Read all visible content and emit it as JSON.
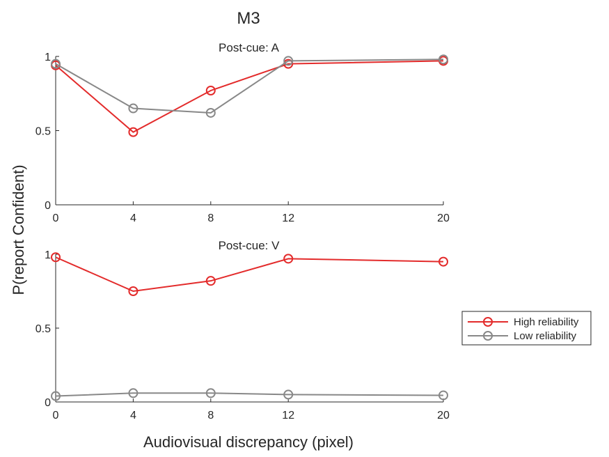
{
  "figure_title": "M3",
  "ylabel": "P(report Confident)",
  "xlabel": "Audiovisual discrepancy (pixel)",
  "legend": [
    {
      "name": "High reliability",
      "color": "#e32b2b"
    },
    {
      "name": "Low reliability",
      "color": "#888888"
    }
  ],
  "chart_data": [
    {
      "type": "line",
      "title": "Post-cue: A",
      "x": [
        0,
        4,
        8,
        12,
        20
      ],
      "xlim": [
        0,
        20
      ],
      "ylim": [
        0,
        1
      ],
      "xticks": [
        "0",
        "4",
        "8",
        "12",
        "20"
      ],
      "yticks": [
        "0",
        "0.5",
        "1"
      ],
      "series": [
        {
          "name": "High reliability",
          "color": "#e32b2b",
          "values": [
            0.94,
            0.49,
            0.77,
            0.95,
            0.97
          ]
        },
        {
          "name": "Low reliability",
          "color": "#888888",
          "values": [
            0.95,
            0.65,
            0.62,
            0.97,
            0.98
          ]
        }
      ]
    },
    {
      "type": "line",
      "title": "Post-cue: V",
      "x": [
        0,
        4,
        8,
        12,
        20
      ],
      "xlim": [
        0,
        20
      ],
      "ylim": [
        0,
        1
      ],
      "xticks": [
        "0",
        "4",
        "8",
        "12",
        "20"
      ],
      "yticks": [
        "0",
        "0.5",
        "1"
      ],
      "series": [
        {
          "name": "High reliability",
          "color": "#e32b2b",
          "values": [
            0.98,
            0.75,
            0.82,
            0.97,
            0.95
          ]
        },
        {
          "name": "Low reliability",
          "color": "#888888",
          "values": [
            0.04,
            0.06,
            0.06,
            0.05,
            0.045
          ]
        }
      ]
    }
  ]
}
